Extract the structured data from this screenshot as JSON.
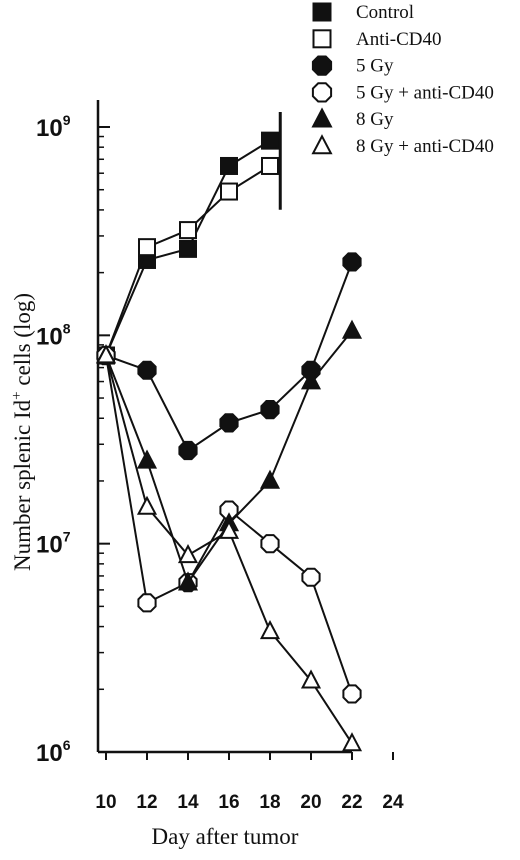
{
  "chart_data": {
    "type": "line",
    "xlabel": "Day after tumor",
    "ylabel": "Number splenic Id",
    "ylabel_sup": "+",
    "ylabel_suffix": " cells (log)",
    "y_scale": "log",
    "xlim": [
      10,
      24
    ],
    "ylim": [
      1000000,
      1000000000
    ],
    "x_ticks": [
      "10",
      "12",
      "14",
      "16",
      "18",
      "20",
      "22",
      "24"
    ],
    "y_ticks": [
      {
        "base": "10",
        "exp": "6"
      },
      {
        "base": "10",
        "exp": "7"
      },
      {
        "base": "10",
        "exp": "8"
      },
      {
        "base": "10",
        "exp": "9"
      }
    ],
    "series": [
      {
        "name": "Control",
        "marker": "square",
        "filled": true,
        "points": [
          [
            10,
            80000000
          ],
          [
            12,
            230000000
          ],
          [
            14,
            260000000
          ],
          [
            16,
            650000000
          ],
          [
            18,
            860000000
          ]
        ]
      },
      {
        "name": "Anti-CD40",
        "marker": "square",
        "filled": false,
        "points": [
          [
            10,
            80000000
          ],
          [
            12,
            265000000
          ],
          [
            14,
            320000000
          ],
          [
            16,
            490000000
          ],
          [
            18,
            650000000
          ]
        ]
      },
      {
        "name": "5 Gy",
        "marker": "hexagon",
        "filled": true,
        "points": [
          [
            10,
            80000000
          ],
          [
            12,
            68000000
          ],
          [
            14,
            28000000
          ],
          [
            16,
            38000000
          ],
          [
            18,
            44000000
          ],
          [
            20,
            68000000
          ],
          [
            22,
            225000000
          ]
        ]
      },
      {
        "name": "5 Gy + anti-CD40",
        "marker": "hexagon",
        "filled": false,
        "points": [
          [
            10,
            80000000
          ],
          [
            12,
            5200000
          ],
          [
            14,
            6500000
          ],
          [
            16,
            14500000
          ],
          [
            18,
            10000000
          ],
          [
            20,
            6900000
          ],
          [
            22,
            1900000
          ]
        ]
      },
      {
        "name": "8 Gy",
        "marker": "triangle",
        "filled": true,
        "points": [
          [
            10,
            80000000
          ],
          [
            12,
            25000000
          ],
          [
            14,
            6500000
          ],
          [
            16,
            12500000
          ],
          [
            18,
            20000000
          ],
          [
            20,
            60000000
          ],
          [
            22,
            105000000
          ]
        ]
      },
      {
        "name": "8 Gy + anti-CD40",
        "marker": "triangle",
        "filled": false,
        "points": [
          [
            10,
            80000000
          ],
          [
            12,
            15000000
          ],
          [
            14,
            8800000
          ],
          [
            16,
            11500000
          ],
          [
            18,
            3800000
          ],
          [
            20,
            2200000
          ],
          [
            22,
            1100000
          ]
        ]
      }
    ],
    "end_bar": {
      "x": 18.5,
      "y_from": 500000000,
      "y_to": 1000000000
    },
    "legend_position": "top-right",
    "grid": false
  }
}
